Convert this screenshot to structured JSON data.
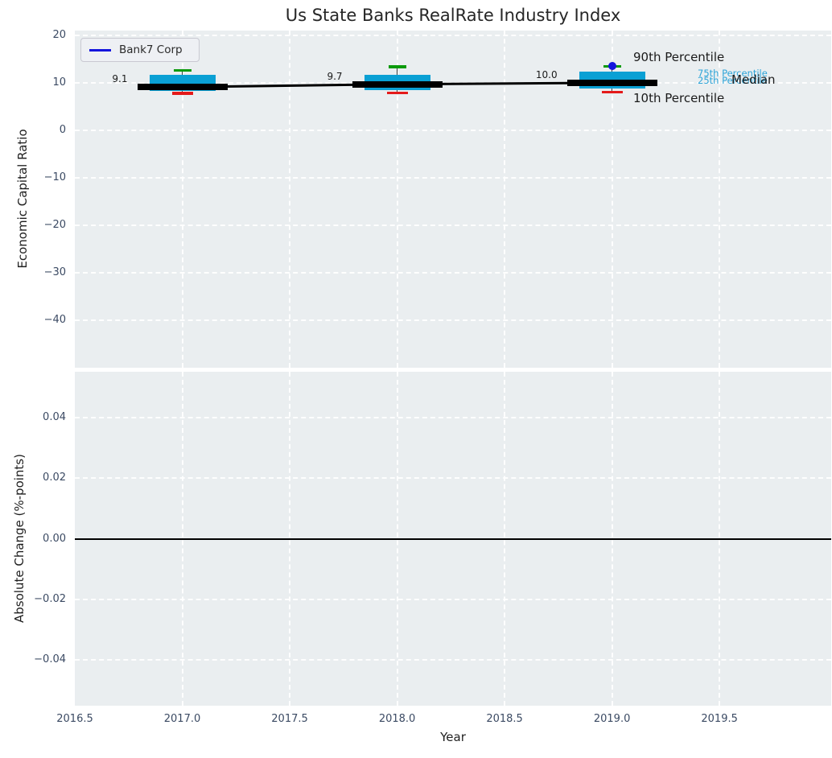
{
  "legend": {
    "label": "Bank7 Corp"
  },
  "colors": {
    "box_fill": "#0aa0d4",
    "cap_90th": "#0a9a0a",
    "cap_10th": "#e41a1a",
    "median_line": "#000000",
    "series_blue": "#1414dd",
    "plot_background": "#eaeef0",
    "grid": "#ffffff",
    "tick_text": "#3b4a63",
    "percentile_label_cyan": "#2da4d8"
  },
  "chart_data": {
    "type": "boxplot",
    "title": "Us State Banks RealRate Industry Index",
    "xlabel": "Year",
    "xlim": [
      2016.5,
      2020.02
    ],
    "grid": "white dashed, on",
    "legend_position": "upper-left",
    "xticks": [
      {
        "value": 2016.5,
        "label": "2016.5"
      },
      {
        "value": 2017.0,
        "label": "2017.0"
      },
      {
        "value": 2017.5,
        "label": "2017.5"
      },
      {
        "value": 2018.0,
        "label": "2018.0"
      },
      {
        "value": 2018.5,
        "label": "2018.5"
      },
      {
        "value": 2019.0,
        "label": "2019.0"
      },
      {
        "value": 2019.5,
        "label": "2019.5"
      }
    ],
    "panels": [
      {
        "ylabel": "Economic Capital Ratio",
        "ylim": [
          -50,
          21
        ],
        "yticks": [
          {
            "value": 20,
            "label": "20"
          },
          {
            "value": 10,
            "label": "10"
          },
          {
            "value": 0,
            "label": "0"
          },
          {
            "value": -10,
            "label": "−10"
          },
          {
            "value": -20,
            "label": "−20"
          },
          {
            "value": -30,
            "label": "−30"
          },
          {
            "value": -40,
            "label": "−40"
          }
        ],
        "boxes": [
          {
            "year": 2017,
            "p10": 7.8,
            "p25": 8.3,
            "median": 9.1,
            "p75": 11.6,
            "p90": 12.6,
            "median_label": "9.1"
          },
          {
            "year": 2018,
            "p10": 7.9,
            "p25": 8.4,
            "median": 9.7,
            "p75": 11.7,
            "p90": 13.4,
            "median_label": "9.7"
          },
          {
            "year": 2019,
            "p10": 8.0,
            "p25": 8.8,
            "median": 10.0,
            "p75": 12.4,
            "p90": 13.5,
            "median_label": "10.0"
          }
        ],
        "series": [
          {
            "name": "Bank7 Corp",
            "points": [
              {
                "year": 2019,
                "value": 13.5
              }
            ]
          }
        ],
        "percentile_labels": {
          "p90": "90th Percentile",
          "p75": "75th Percentile",
          "p25": "25th Percentile",
          "median": "Median",
          "p10": "10th Percentile"
        }
      },
      {
        "ylabel": "Absolute Change (%-points)",
        "ylim": [
          -0.055,
          0.055
        ],
        "yticks": [
          {
            "value": 0.04,
            "label": "0.04"
          },
          {
            "value": 0.02,
            "label": "0.02"
          },
          {
            "value": 0.0,
            "label": "0.00"
          },
          {
            "value": -0.02,
            "label": "−0.02"
          },
          {
            "value": -0.04,
            "label": "−0.04"
          }
        ],
        "zero_line": 0.0,
        "series": []
      }
    ]
  }
}
